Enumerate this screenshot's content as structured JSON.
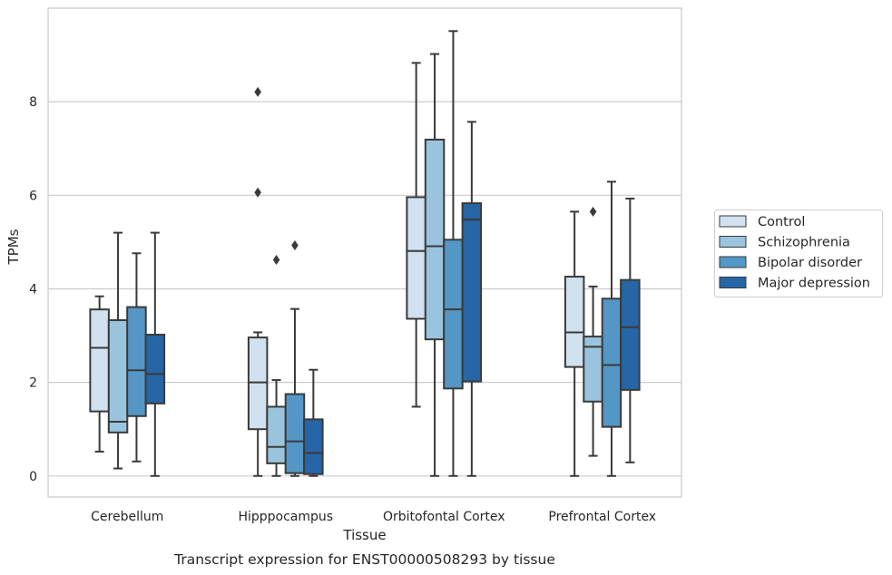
{
  "caption": "Transcript expression for ENST00000508293 by tissue",
  "chart_data": {
    "type": "box",
    "title": "",
    "xlabel": "Tissue",
    "ylabel": "TPMs",
    "ylim": [
      -0.45,
      10.0
    ],
    "yticks": [
      0,
      2,
      4,
      6,
      8
    ],
    "grid": "horizontal",
    "legend_position": "right",
    "categories": [
      "Cerebellum",
      "Hipppocampus",
      "Orbitofontal Cortex",
      "Prefrontal Cortex"
    ],
    "series": [
      {
        "name": "Control",
        "color": "#d1e1ef",
        "boxes": [
          {
            "whisker_low": 0.52,
            "q1": 1.38,
            "median": 2.74,
            "q3": 3.56,
            "whisker_high": 3.84,
            "outliers": []
          },
          {
            "whisker_low": 0.0,
            "q1": 1.0,
            "median": 2.0,
            "q3": 2.96,
            "whisker_high": 3.07,
            "outliers": [
              6.06,
              8.21
            ]
          },
          {
            "whisker_low": 1.48,
            "q1": 3.36,
            "median": 4.81,
            "q3": 5.96,
            "whisker_high": 8.83,
            "outliers": []
          },
          {
            "whisker_low": 0.0,
            "q1": 2.33,
            "median": 3.07,
            "q3": 4.26,
            "whisker_high": 5.65,
            "outliers": []
          }
        ]
      },
      {
        "name": "Schizophrenia",
        "color": "#9ac4dd",
        "boxes": [
          {
            "whisker_low": 0.16,
            "q1": 0.93,
            "median": 1.16,
            "q3": 3.33,
            "whisker_high": 5.2,
            "outliers": []
          },
          {
            "whisker_low": 0.0,
            "q1": 0.27,
            "median": 0.62,
            "q3": 1.48,
            "whisker_high": 2.05,
            "outliers": [
              4.62
            ]
          },
          {
            "whisker_low": 0.0,
            "q1": 2.92,
            "median": 4.91,
            "q3": 7.19,
            "whisker_high": 9.02,
            "outliers": []
          },
          {
            "whisker_low": 0.43,
            "q1": 1.59,
            "median": 2.76,
            "q3": 2.98,
            "whisker_high": 4.05,
            "outliers": [
              5.65
            ]
          }
        ]
      },
      {
        "name": "Bipolar disorder",
        "color": "#5497c6",
        "boxes": [
          {
            "whisker_low": 0.31,
            "q1": 1.28,
            "median": 2.26,
            "q3": 3.61,
            "whisker_high": 4.76,
            "outliers": []
          },
          {
            "whisker_low": 0.0,
            "q1": 0.06,
            "median": 0.74,
            "q3": 1.75,
            "whisker_high": 3.57,
            "outliers": [
              4.93
            ]
          },
          {
            "whisker_low": 0.0,
            "q1": 1.87,
            "median": 3.56,
            "q3": 5.05,
            "whisker_high": 9.51,
            "outliers": []
          },
          {
            "whisker_low": 0.0,
            "q1": 1.05,
            "median": 2.37,
            "q3": 3.79,
            "whisker_high": 6.29,
            "outliers": []
          }
        ]
      },
      {
        "name": "Major depression",
        "color": "#2666a6",
        "boxes": [
          {
            "whisker_low": 0.0,
            "q1": 1.55,
            "median": 2.18,
            "q3": 3.02,
            "whisker_high": 5.2,
            "outliers": []
          },
          {
            "whisker_low": 0.0,
            "q1": 0.04,
            "median": 0.49,
            "q3": 1.21,
            "whisker_high": 2.27,
            "outliers": []
          },
          {
            "whisker_low": 0.0,
            "q1": 2.02,
            "median": 5.48,
            "q3": 5.83,
            "whisker_high": 7.57,
            "outliers": []
          },
          {
            "whisker_low": 0.29,
            "q1": 1.84,
            "median": 3.18,
            "q3": 4.19,
            "whisker_high": 5.93,
            "outliers": []
          }
        ]
      }
    ]
  }
}
